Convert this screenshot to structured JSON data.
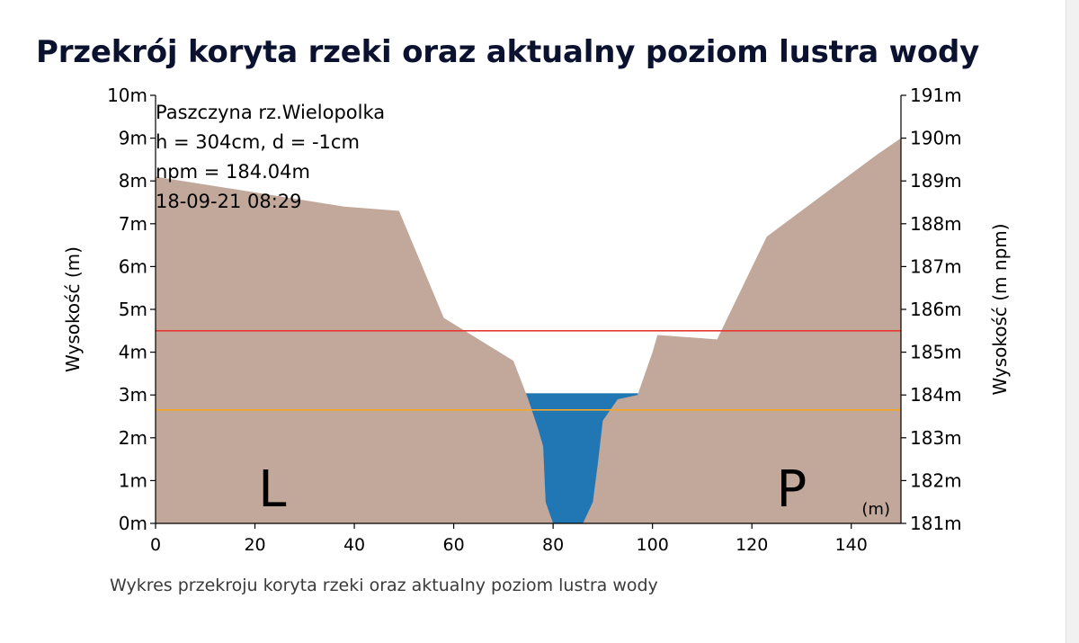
{
  "page": {
    "title": "Przekrój koryta rzeki oraz aktualny poziom lustra wody",
    "caption": "Wykres przekroju koryta rzeki oraz aktualny poziom lustra wody"
  },
  "chart_data": {
    "type": "area",
    "info": {
      "station": "Paszczyna rz.Wielopolka",
      "level_line": "h = 304cm, d = -1cm",
      "npm_line": "npm = 184.04m",
      "datetime": "18-09-21 08:29"
    },
    "bank_labels": {
      "left": "L",
      "right": "P"
    },
    "x_unit_label": "(m)",
    "ylabel_left": "Wysokość (m)",
    "ylabel_right": "Wysokość (m npm)",
    "xlim": [
      0,
      150
    ],
    "ylim_left": [
      0,
      10
    ],
    "ylim_right": [
      181,
      191
    ],
    "x_ticks": [
      0,
      20,
      40,
      60,
      80,
      100,
      120,
      140
    ],
    "y_ticks_left": [
      "0m",
      "1m",
      "2m",
      "3m",
      "4m",
      "5m",
      "6m",
      "7m",
      "8m",
      "9m",
      "10m"
    ],
    "y_ticks_right": [
      "181m",
      "182m",
      "183m",
      "184m",
      "185m",
      "186m",
      "187m",
      "188m",
      "189m",
      "190m",
      "191m"
    ],
    "profile": {
      "x": [
        0,
        38,
        49,
        58,
        72,
        75,
        77,
        78,
        78.5,
        80,
        86,
        88,
        89,
        90,
        93,
        97,
        100,
        101,
        113,
        123,
        145,
        150
      ],
      "y": [
        8.1,
        7.4,
        7.3,
        4.8,
        3.8,
        2.9,
        2.2,
        1.8,
        0.5,
        0,
        0,
        0.5,
        1.4,
        2.4,
        2.9,
        3.0,
        4.0,
        4.4,
        4.3,
        6.7,
        8.6,
        9.0
      ]
    },
    "water_level": 3.04,
    "reference_lines": [
      {
        "value": 4.5,
        "color": "#e53935"
      },
      {
        "value": 2.65,
        "color": "#f5a623"
      }
    ],
    "colors": {
      "ground": "#c1a89a",
      "water": "#2077b4"
    }
  }
}
